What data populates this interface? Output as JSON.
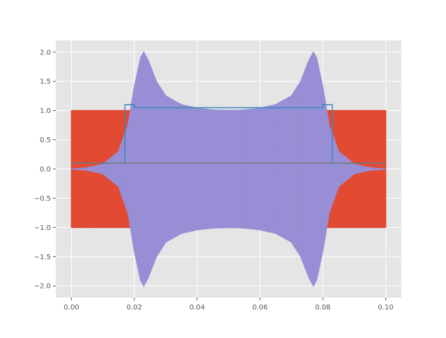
{
  "chart_data": {
    "type": "line",
    "style": "ggplot",
    "title": "",
    "xlabel": "",
    "ylabel": "",
    "xlim": [
      -0.005,
      0.105
    ],
    "ylim": [
      -2.2,
      2.2
    ],
    "grid": true,
    "legend": "none",
    "x_ticks": [
      0.0,
      0.02,
      0.04,
      0.06,
      0.08,
      0.1
    ],
    "x_tick_labels": [
      "0.00",
      "0.02",
      "0.04",
      "0.06",
      "0.08",
      "0.10"
    ],
    "y_ticks": [
      -2.0,
      -1.5,
      -1.0,
      -0.5,
      0.0,
      0.5,
      1.0,
      1.5,
      2.0
    ],
    "y_tick_labels": [
      "−2.0",
      "−1.5",
      "−1.0",
      "−0.5",
      "0.0",
      "0.5",
      "1.0",
      "1.5",
      "2.0"
    ],
    "series": [
      {
        "color": "#E24A33",
        "kind": "oscillation-band",
        "x": [
          0.0,
          0.1
        ],
        "upper": [
          1.0,
          1.0
        ],
        "lower": [
          -1.0,
          -1.0
        ]
      },
      {
        "color": "#988ED5",
        "kind": "oscillation-band",
        "x": [
          0.0,
          0.005,
          0.01,
          0.015,
          0.018,
          0.02,
          0.022,
          0.023,
          0.0245,
          0.027,
          0.03,
          0.035,
          0.04,
          0.045,
          0.05,
          0.055,
          0.06,
          0.065,
          0.07,
          0.073,
          0.0755,
          0.077,
          0.078,
          0.08,
          0.082,
          0.085,
          0.09,
          0.095,
          0.1
        ],
        "upper": [
          0.0,
          0.02,
          0.08,
          0.3,
          0.75,
          1.4,
          1.9,
          2.0,
          1.85,
          1.5,
          1.25,
          1.1,
          1.04,
          1.01,
          1.0,
          1.01,
          1.04,
          1.1,
          1.25,
          1.5,
          1.85,
          2.0,
          1.9,
          1.4,
          0.75,
          0.3,
          0.08,
          0.02,
          0.0
        ],
        "lower": [
          0.0,
          -0.02,
          -0.08,
          -0.3,
          -0.75,
          -1.4,
          -1.9,
          -2.0,
          -1.85,
          -1.5,
          -1.25,
          -1.1,
          -1.04,
          -1.01,
          -1.0,
          -1.01,
          -1.04,
          -1.1,
          -1.25,
          -1.5,
          -1.85,
          -2.0,
          -1.9,
          -1.4,
          -0.75,
          -0.3,
          -0.08,
          -0.02,
          0.0
        ]
      },
      {
        "color": "#348ABD",
        "kind": "step",
        "x": [
          0.0,
          0.017,
          0.017,
          0.02,
          0.02,
          0.08,
          0.08,
          0.083,
          0.083,
          0.1
        ],
        "y": [
          0.1,
          0.1,
          1.1,
          1.1,
          1.05,
          1.05,
          1.1,
          1.1,
          0.1,
          0.1
        ]
      },
      {
        "color": "#777777",
        "kind": "line",
        "x": [
          0.0,
          0.1
        ],
        "y": [
          0.1,
          0.1
        ]
      }
    ]
  }
}
